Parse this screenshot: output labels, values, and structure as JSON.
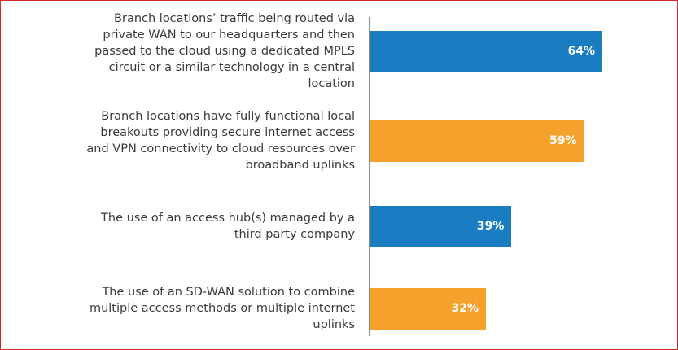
{
  "chart_data": {
    "type": "bar",
    "orientation": "horizontal",
    "categories": [
      "Branch locations’ traffic being routed via private WAN to our headquarters and then passed to the cloud using a dedicated MPLS circuit or a similar technology in a central location",
      "Branch locations have fully functional local breakouts providing secure internet access and VPN connectivity to cloud resources over broadband uplinks",
      "The use of an access hub(s) managed by a third party company",
      "The use of an SD-WAN solution to combine multiple access methods or multiple internet uplinks"
    ],
    "values": [
      64,
      59,
      39,
      32
    ],
    "value_labels": [
      "64%",
      "59%",
      "39%",
      "32%"
    ],
    "colors": [
      "#1a7dc2",
      "#f6a12c",
      "#1a7dc2",
      "#f6a12c"
    ]
  }
}
